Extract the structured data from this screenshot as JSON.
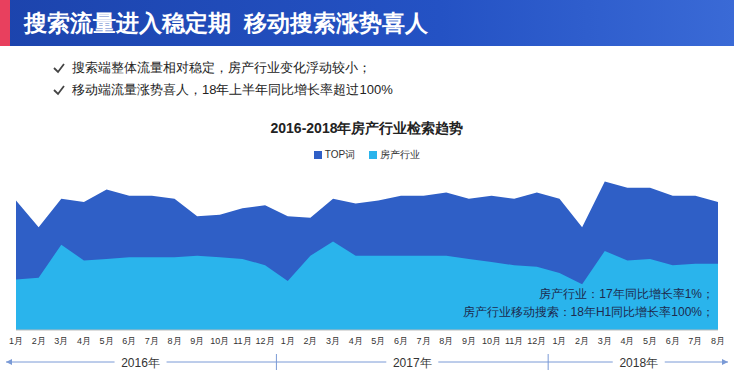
{
  "header": {
    "title": "搜索流量进入稳定期  移动搜索涨势喜人"
  },
  "bullets": [
    "搜索端整体流量相对稳定，房产行业变化浮动较小；",
    "移动端流量涨势喜人，18年上半年同比增长率超过100%"
  ],
  "chart_data": {
    "type": "area",
    "title": "2016-2018年房产行业检索趋势",
    "categories": [
      "1月",
      "2月",
      "3月",
      "4月",
      "5月",
      "6月",
      "7月",
      "8月",
      "9月",
      "10月",
      "11月",
      "12月",
      "1月",
      "2月",
      "3月",
      "4月",
      "5月",
      "6月",
      "7月",
      "8月",
      "9月",
      "10月",
      "11月",
      "12月",
      "1月",
      "2月",
      "3月",
      "4月",
      "5月",
      "6月",
      "7月",
      "8月"
    ],
    "years": [
      "2016年",
      "2017年",
      "2018年"
    ],
    "series": [
      {
        "name": "TOP词",
        "color": "#2f5fc6",
        "values": [
          82,
          65,
          83,
          81,
          89,
          85,
          85,
          83,
          72,
          73,
          77,
          79,
          72,
          71,
          83,
          80,
          82,
          85,
          85,
          87,
          83,
          85,
          83,
          87,
          83,
          65,
          94,
          90,
          90,
          85,
          85,
          81
        ]
      },
      {
        "name": "房产行业",
        "color": "#2ab4ec",
        "values": [
          32,
          33,
          54,
          44,
          45,
          46,
          46,
          46,
          47,
          46,
          45,
          41,
          31,
          47,
          56,
          47,
          47,
          47,
          47,
          47,
          45,
          43,
          41,
          40,
          36,
          29,
          50,
          44,
          45,
          41,
          42,
          42
        ]
      }
    ],
    "ylim": [
      0,
      100
    ],
    "stacked": false,
    "legend": "top",
    "tick_labels": "x",
    "annotations": [
      "房产行业：17年同比增长率1%；",
      "房产行业移动搜索：18年H1同比增长率100%；"
    ]
  }
}
